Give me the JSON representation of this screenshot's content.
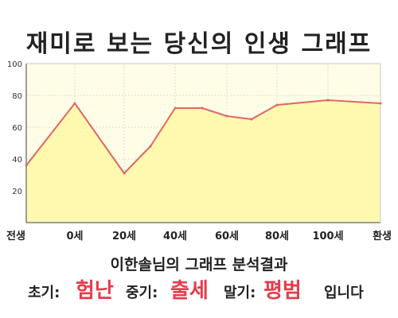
{
  "chart_data": {
    "type": "area",
    "title": "재미로 보는 당신의 인생 그래프",
    "x_ticks": [
      "전생",
      "0세",
      "20세",
      "40세",
      "60세",
      "80세",
      "100세",
      "환생"
    ],
    "y_ticks": [
      "20",
      "40",
      "60",
      "80",
      "100"
    ],
    "ylim": [
      0,
      100
    ],
    "grid": true,
    "points": [
      {
        "x": "전생",
        "y": 36
      },
      {
        "x": "0세",
        "y": 75
      },
      {
        "x": "20세",
        "y": 31
      },
      {
        "x": "30세",
        "y": 48
      },
      {
        "x": "40세",
        "y": 72
      },
      {
        "x": "50세",
        "y": 72
      },
      {
        "x": "60세",
        "y": 67
      },
      {
        "x": "70세",
        "y": 65
      },
      {
        "x": "80세",
        "y": 74
      },
      {
        "x": "100세",
        "y": 77
      },
      {
        "x": "환생",
        "y": 75
      }
    ],
    "colors": {
      "line": "#e06666",
      "fill": "#fff9b0",
      "plot_bg": "#fffde6",
      "grid": "#dcdcdc",
      "axis": "#7f7f7f"
    }
  },
  "result": {
    "label": "이한솔님의 그래프 분석결과",
    "early_label": "초기:",
    "early_value": "험난",
    "middle_label": "중기:",
    "middle_value": "출세",
    "late_label": "말기:",
    "late_value": "평범",
    "suffix": "입니다"
  }
}
